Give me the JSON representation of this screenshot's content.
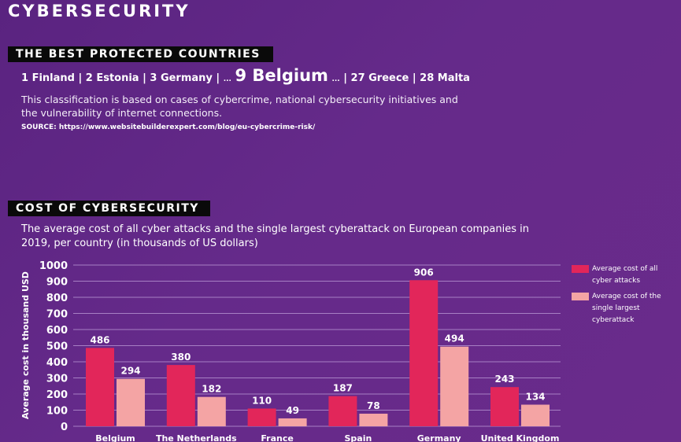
{
  "page": {
    "title": "CYBERSECURITY",
    "section1": {
      "header": "THE BEST PROTECTED COUNTRIES",
      "ranking_prefix": "1 Finland | 2 Estonia | 3 Germany | ",
      "ranking_gap1": "...",
      "ranking_highlight": "9 Belgium",
      "ranking_gap2": "...",
      "ranking_suffix": " | 27 Greece | 28 Malta",
      "description": "This classification is based on cases of cybercrime, national cybersecurity initiatives and the vulnerability of internet connections.",
      "source": "SOURCE: https://www.websitebuilderexpert.com/blog/eu-cybercrime-risk/"
    },
    "section2": {
      "header": "COST OF CYBERSECURITY",
      "caption": "The average cost of all cyber attacks and the single largest cyberattack on European companies in 2019, per country (in thousands of US dollars)"
    }
  },
  "chart_data": {
    "type": "bar",
    "categories": [
      "Belgium",
      "The Netherlands",
      "France",
      "Spain",
      "Germany",
      "United Kingdom"
    ],
    "series": [
      {
        "name": "Average cost of all cyber attacks",
        "values": [
          486,
          380,
          110,
          187,
          906,
          243
        ],
        "color": "#e2265a"
      },
      {
        "name": "Average cost of the single largest cyberattack",
        "values": [
          294,
          182,
          49,
          78,
          494,
          134
        ],
        "color": "#f4a4a4"
      }
    ],
    "ylabel": "Average cost in thousand USD",
    "ylim": [
      0,
      1000
    ],
    "yticks": [
      0,
      100,
      200,
      300,
      400,
      500,
      600,
      700,
      800,
      900,
      1000
    ],
    "grid": true,
    "legend": "right",
    "gridColor": "#a77fc4"
  }
}
